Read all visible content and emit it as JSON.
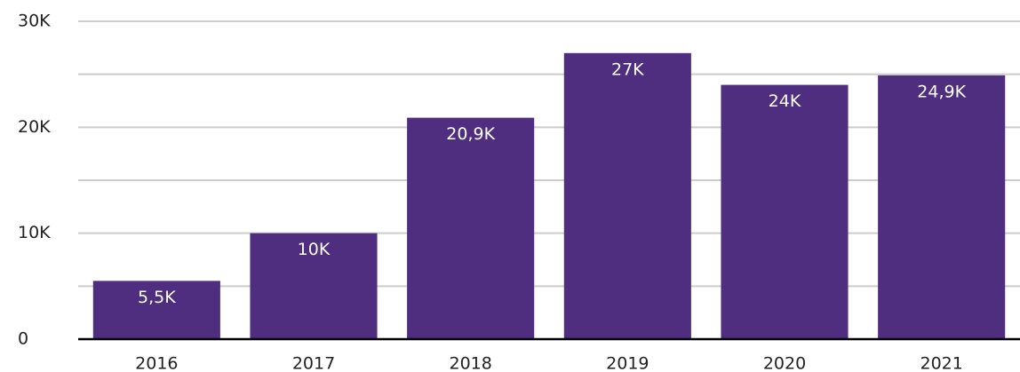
{
  "chart_data": {
    "type": "bar",
    "categories": [
      "2016",
      "2017",
      "2018",
      "2019",
      "2020",
      "2021"
    ],
    "values": [
      5500,
      10000,
      20900,
      27000,
      24000,
      24900
    ],
    "value_labels": [
      "5,5K",
      "10K",
      "20,9K",
      "27K",
      "24K",
      "24,9K"
    ],
    "color": "#4f2d7f",
    "ylim": [
      0,
      30000
    ],
    "yticks": [
      0,
      {
        "value": 10000,
        "label": "10K"
      },
      {
        "value": 20000,
        "label": "20K"
      },
      {
        "value": 30000,
        "label": "30K"
      }
    ],
    "minor_yticks": [
      5000,
      15000,
      25000
    ],
    "grid": true
  }
}
